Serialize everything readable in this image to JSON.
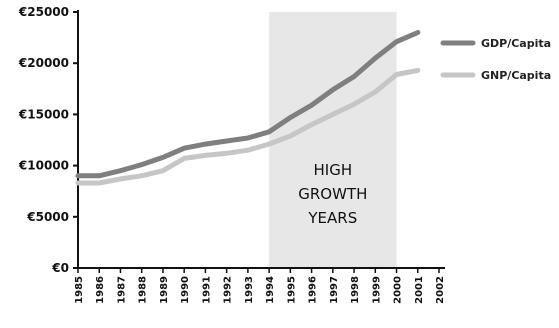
{
  "chart_data": {
    "type": "line",
    "x": [
      "1985",
      "1986",
      "1987",
      "1988",
      "1989",
      "1990",
      "1991",
      "1992",
      "1993",
      "1994",
      "1995",
      "1996",
      "1997",
      "1998",
      "1999",
      "2000",
      "2001",
      "2002"
    ],
    "ylim": [
      0,
      25000
    ],
    "yticks": [
      "€0",
      "€5000",
      "€10000",
      "€15000",
      "€20000",
      "€25000"
    ],
    "grid": false,
    "legend_position": "top-right",
    "series": [
      {
        "name": "GDP/Capita",
        "color": "#7f7f7f",
        "values": [
          9000,
          9000,
          9500,
          10100,
          10800,
          11700,
          12100,
          12400,
          12700,
          13300,
          14700,
          15900,
          17400,
          18700,
          20500,
          22100,
          23000,
          null
        ]
      },
      {
        "name": "GNP/Capita",
        "color": "#c6c6c6",
        "values": [
          8300,
          8300,
          8700,
          9000,
          9500,
          10700,
          11000,
          11200,
          11500,
          12100,
          12900,
          14000,
          15000,
          16000,
          17200,
          18900,
          19300,
          null
        ]
      }
    ],
    "shaded_region": {
      "x_start": "1994",
      "x_end": "2000",
      "color": "#e7e7e7",
      "label_lines": [
        "HIGH",
        "GROWTH",
        "YEARS"
      ]
    }
  }
}
